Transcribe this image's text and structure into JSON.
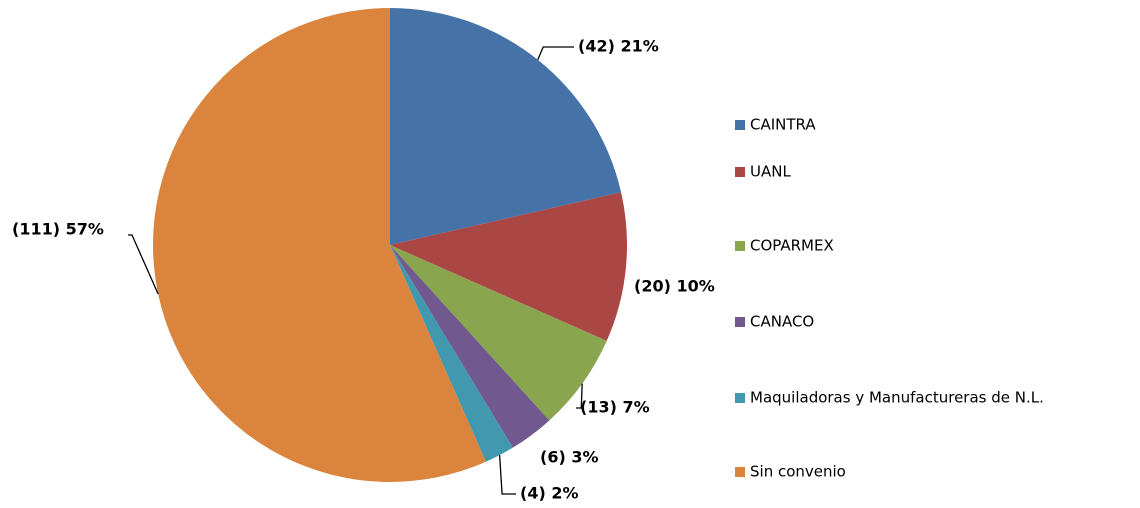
{
  "chart_data": {
    "type": "pie",
    "categories": [
      "CAINTRA",
      "UANL",
      "COPARMEX",
      "CANACO",
      "Maquiladoras y Manufactureras de N.L.",
      "Sin convenio"
    ],
    "values": [
      42,
      20,
      13,
      6,
      4,
      111
    ],
    "value_labels": [
      "(42) 21%",
      "(20) 10%",
      "(13) 7%",
      "(6) 3%",
      "(4) 2%",
      "(111) 57%"
    ],
    "colors": [
      "#4572a7",
      "#aa4643",
      "#89a54e",
      "#71588f",
      "#4198af",
      "#db843d"
    ],
    "legend": "right"
  }
}
